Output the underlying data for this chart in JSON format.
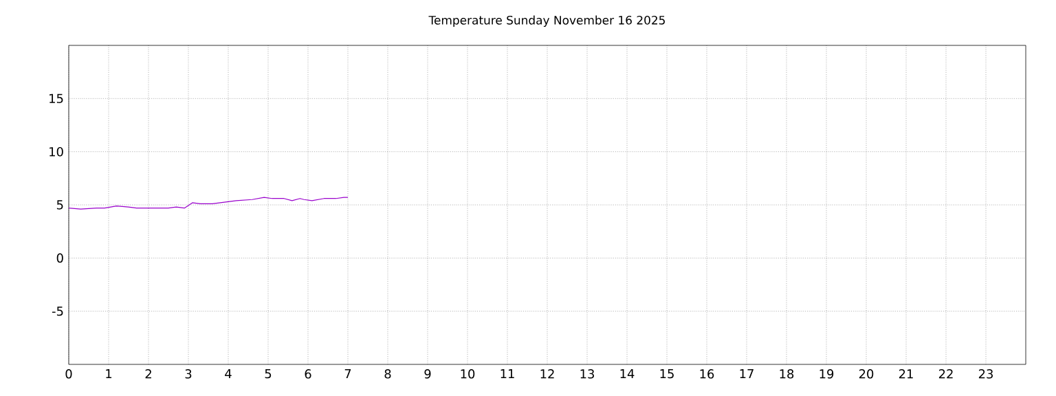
{
  "chart_data": {
    "type": "line",
    "title": "Temperature Sunday November 16 2025",
    "x": [
      0,
      0.3,
      0.7,
      0.9,
      1.2,
      1.5,
      1.7,
      2.5,
      2.7,
      2.9,
      3.1,
      3.3,
      3.6,
      3.8,
      4.2,
      4.6,
      4.9,
      5.1,
      5.4,
      5.6,
      5.8,
      5.9,
      6.1,
      6.4,
      6.7,
      6.9,
      7.0
    ],
    "series": [
      {
        "color": "#9900cc",
        "values": [
          4.7,
          4.6,
          4.7,
          4.7,
          4.9,
          4.8,
          4.7,
          4.7,
          4.8,
          4.7,
          5.2,
          5.1,
          5.1,
          5.2,
          5.4,
          5.5,
          5.7,
          5.6,
          5.6,
          5.4,
          5.6,
          5.5,
          5.4,
          5.6,
          5.6,
          5.7,
          5.7
        ]
      }
    ],
    "xlim": [
      0,
      24
    ],
    "xticks": [
      0,
      1,
      2,
      3,
      4,
      5,
      6,
      7,
      8,
      9,
      10,
      11,
      12,
      13,
      14,
      15,
      16,
      17,
      18,
      19,
      20,
      21,
      22,
      23
    ],
    "ylim": [
      -10,
      20
    ],
    "yticks": [
      -5,
      0,
      5,
      10,
      15
    ],
    "grid": true,
    "marker": "none",
    "line_style": "solid"
  }
}
